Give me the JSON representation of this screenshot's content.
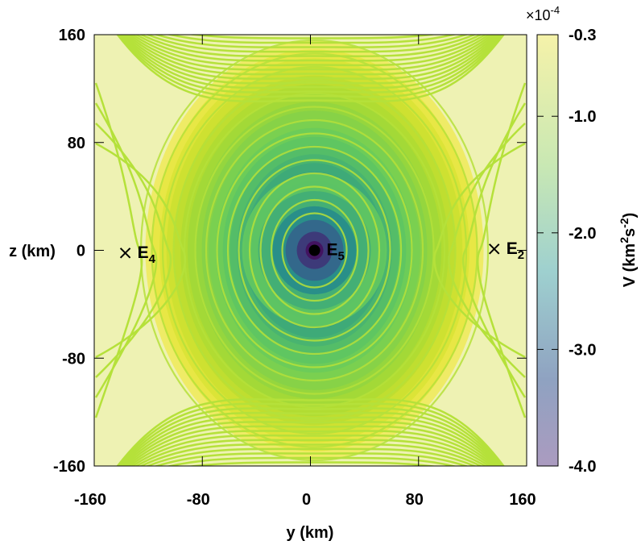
{
  "chart_data": {
    "type": "heatmap",
    "subtype": "contour",
    "xlabel": "y (km)",
    "ylabel": "z (km)",
    "xlim": [
      -160,
      160
    ],
    "ylim": [
      -160,
      160
    ],
    "x_ticks": [
      -160,
      -80,
      0,
      80,
      160
    ],
    "y_ticks": [
      -160,
      -80,
      0,
      80,
      160
    ],
    "colorbar": {
      "label": "V (km²s⁻²)",
      "label_main": "V (km",
      "label_sup1": "2",
      "label_mid": "s",
      "label_sup2": "-2",
      "label_end": ")",
      "multiplier": "×10",
      "multiplier_exp": "-4",
      "range": [
        -4.0,
        -0.3
      ],
      "ticks": [
        -0.3,
        -1.0,
        -2.0,
        -3.0,
        -4.0
      ],
      "tick_labels": [
        "-0.3",
        "-1.0",
        "-2.0",
        "-3.0",
        "-4.0"
      ],
      "colormap": [
        "#440154",
        "#3b528b",
        "#21908d",
        "#5dc863",
        "#a8dc32",
        "#fde725"
      ]
    },
    "field_range_at_plot": [
      -4.0,
      -0.3
    ],
    "points": [
      {
        "name": "E4",
        "label": "E",
        "sub": "4",
        "y": -137,
        "z": -2,
        "marker": "x"
      },
      {
        "name": "E5",
        "label": "E",
        "sub": "5",
        "y": 3,
        "z": 0,
        "marker": "dot"
      },
      {
        "name": "E2",
        "label": "E",
        "sub": "2",
        "y": 136,
        "z": 1,
        "marker": "x"
      }
    ],
    "grid": false,
    "colors": {
      "contour_line": "#b5e13a",
      "background_high": "#eef2b3"
    }
  }
}
